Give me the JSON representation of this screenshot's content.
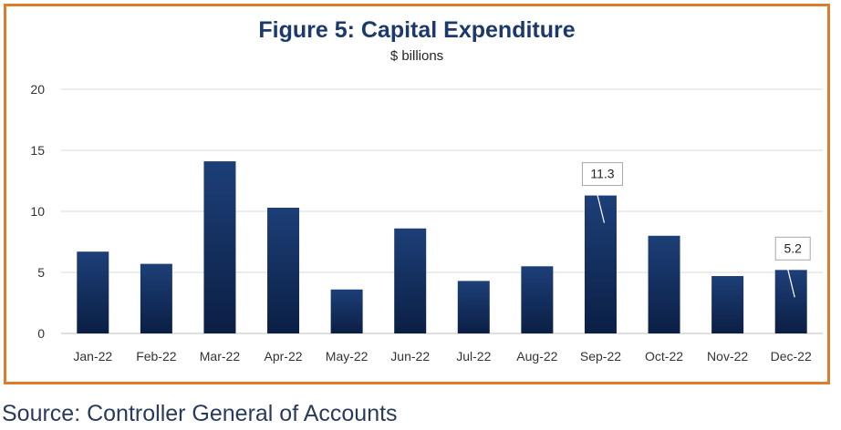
{
  "chart_data": {
    "type": "bar",
    "title": "Figure 5: Capital Expenditure",
    "subtitle": "$ billions",
    "xlabel": "",
    "ylabel": "",
    "categories": [
      "Jan-22",
      "Feb-22",
      "Mar-22",
      "Apr-22",
      "May-22",
      "Jun-22",
      "Jul-22",
      "Aug-22",
      "Sep-22",
      "Oct-22",
      "Nov-22",
      "Dec-22"
    ],
    "values": [
      6.7,
      5.7,
      14.1,
      10.3,
      3.6,
      8.6,
      4.3,
      5.5,
      11.3,
      8.0,
      4.7,
      5.2
    ],
    "ylim": [
      0,
      20
    ],
    "yticks": [
      "0",
      "5",
      "10",
      "15",
      "20"
    ],
    "grid": true,
    "annotations": [
      {
        "category": "Sep-22",
        "text": "11.3"
      },
      {
        "category": "Dec-22",
        "text": "5.2"
      }
    ],
    "colors": {
      "bar_top": "#1d3f78",
      "bar_bottom": "#0b1f44",
      "frame": "#e07b2a",
      "title": "#1b3a6b"
    }
  },
  "source": "Source: Controller General of Accounts"
}
